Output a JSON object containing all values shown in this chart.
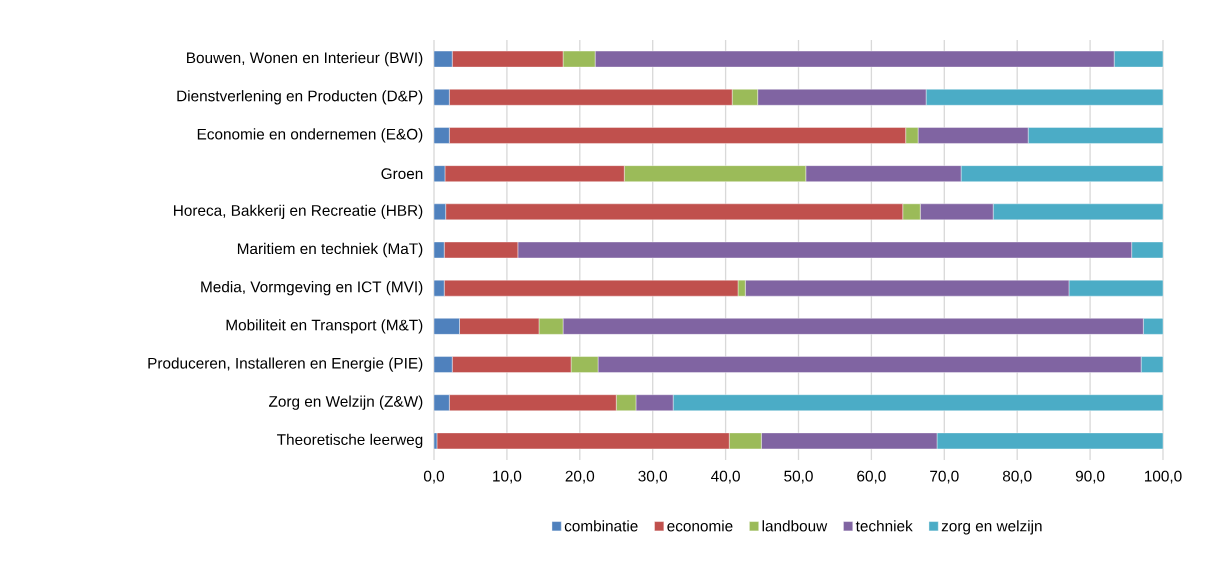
{
  "chart_data": {
    "type": "bar",
    "orientation": "horizontal",
    "stacked": true,
    "categories": [
      "Bouwen, Wonen en Interieur (BWI)",
      "Dienstverlening en Producten (D&P)",
      "Economie en ondernemen (E&O)",
      "Groen",
      "Horeca, Bakkerij en Recreatie (HBR)",
      "Maritiem en techniek (MaT)",
      "Media, Vormgeving en ICT (MVI)",
      "Mobiliteit en Transport (M&T)",
      "Produceren, Installeren en Energie (PIE)",
      "Zorg en Welzijn (Z&W)",
      "Theoretische leerweg"
    ],
    "series": [
      {
        "name": "combinatie",
        "color": "#4f81bd",
        "values": [
          2.5,
          2.1,
          2.1,
          1.5,
          1.6,
          1.4,
          1.4,
          3.5,
          2.5,
          2.1,
          0.4
        ]
      },
      {
        "name": "economie",
        "color": "#c0504d",
        "values": [
          15.2,
          38.8,
          62.6,
          24.6,
          62.7,
          10.1,
          40.3,
          10.9,
          16.3,
          22.9,
          40.1
        ]
      },
      {
        "name": "landbouw",
        "color": "#9bbb59",
        "values": [
          4.4,
          3.5,
          1.7,
          24.9,
          2.4,
          0,
          1.0,
          3.3,
          3.7,
          2.7,
          4.4
        ]
      },
      {
        "name": "techniek",
        "color": "#8064a2",
        "values": [
          71.2,
          23.1,
          15.1,
          21.3,
          10.0,
          84.2,
          44.4,
          79.6,
          74.5,
          5.1,
          24.1
        ]
      },
      {
        "name": "zorg en welzijn",
        "color": "#4bacc6",
        "values": [
          6.7,
          32.5,
          18.5,
          27.7,
          23.3,
          4.3,
          12.9,
          2.7,
          3.0,
          67.2,
          31.0
        ]
      }
    ],
    "xlim": [
      0,
      100
    ],
    "xticks": [
      {
        "value": 0,
        "label": "0,0"
      },
      {
        "value": 10,
        "label": "10,0"
      },
      {
        "value": 20,
        "label": "20,0"
      },
      {
        "value": 30,
        "label": "30,0"
      },
      {
        "value": 40,
        "label": "40,0"
      },
      {
        "value": 50,
        "label": "50,0"
      },
      {
        "value": 60,
        "label": "60,0"
      },
      {
        "value": 70,
        "label": "70,0"
      },
      {
        "value": 80,
        "label": "80,0"
      },
      {
        "value": 90,
        "label": "90,0"
      },
      {
        "value": 100,
        "label": "100,0"
      }
    ],
    "grid": "x",
    "legend": "bottom"
  }
}
